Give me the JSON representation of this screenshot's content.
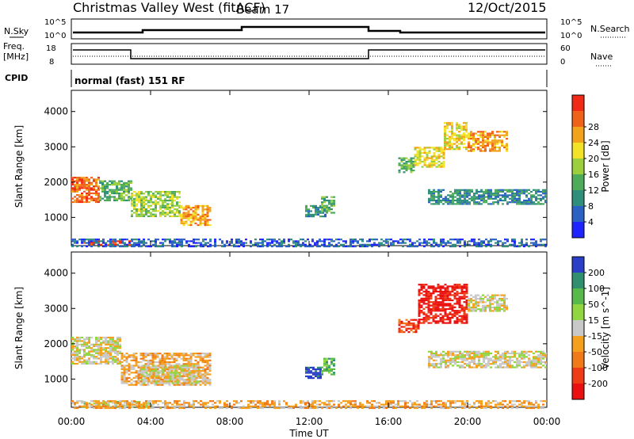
{
  "header": {
    "station": "Christmas Valley West (fitACF)",
    "beam": "Beam 17",
    "date": "12/Oct/2015",
    "mode": "normal (fast) 151 RF"
  },
  "panels": {
    "nsky": {
      "left_label": "N.Sky",
      "left_ticks": [
        "10^5",
        "10^0"
      ],
      "right_label": "N.Search",
      "right_ticks": [
        "10^5",
        "10^0"
      ]
    },
    "freq": {
      "left_label_1": "Freq.",
      "left_label_2": "[MHz]",
      "left_ticks": [
        "18",
        "8"
      ],
      "right_label": "Nave",
      "right_ticks": [
        "60",
        "0"
      ]
    },
    "cpid": {
      "label": "CPID"
    }
  },
  "time_axis": {
    "title": "Time UT",
    "ticks": [
      "00:00",
      "04:00",
      "08:00",
      "12:00",
      "16:00",
      "20:00",
      "00:00"
    ]
  },
  "chart_data": [
    {
      "type": "heatmap",
      "title": "Power",
      "ylabel": "Slant Range [km]",
      "yticks": [
        1000,
        2000,
        3000,
        4000
      ],
      "ylim": [
        200,
        4600
      ],
      "xlim_hours": [
        0,
        24
      ],
      "colorbar": {
        "label": "Power [dB]",
        "ticks": [
          4,
          8,
          12,
          16,
          20,
          24,
          28
        ],
        "colors": [
          "#1f24ff",
          "#2a62c4",
          "#2f8f7a",
          "#4dab5a",
          "#9ccf3c",
          "#f3e227",
          "#f3a21c",
          "#f0621a",
          "#f02a15"
        ]
      },
      "regions": [
        {
          "t0": 0.0,
          "t1": 1.4,
          "r0": 1450,
          "r1": 2150,
          "level": 7
        },
        {
          "t0": 1.4,
          "t1": 3.0,
          "r0": 1500,
          "r1": 2050,
          "level": 3
        },
        {
          "t0": 3.0,
          "t1": 5.5,
          "r0": 1050,
          "r1": 1750,
          "level": 4
        },
        {
          "t0": 5.5,
          "t1": 7.0,
          "r0": 800,
          "r1": 1350,
          "level": 6
        },
        {
          "t0": 11.8,
          "t1": 12.8,
          "r0": 1050,
          "r1": 1350,
          "level": 2
        },
        {
          "t0": 12.6,
          "t1": 13.3,
          "r0": 1150,
          "r1": 1600,
          "level": 3
        },
        {
          "t0": 16.5,
          "t1": 17.3,
          "r0": 2300,
          "r1": 2700,
          "level": 3
        },
        {
          "t0": 17.3,
          "t1": 18.8,
          "r0": 2450,
          "r1": 3000,
          "level": 5
        },
        {
          "t0": 18.8,
          "t1": 20.0,
          "r0": 2950,
          "r1": 3700,
          "level": 5
        },
        {
          "t0": 20.0,
          "t1": 22.0,
          "r0": 2900,
          "r1": 3450,
          "level": 6
        },
        {
          "t0": 18.0,
          "t1": 23.9,
          "r0": 1400,
          "r1": 1800,
          "level": 2
        },
        {
          "t0": 0.6,
          "t1": 3.0,
          "r0": 230,
          "r1": 350,
          "level": 8
        },
        {
          "t0": 0.0,
          "t1": 24.0,
          "r0": 150,
          "r1": 400,
          "level": 1
        }
      ]
    },
    {
      "type": "heatmap",
      "title": "Velocity",
      "ylabel": "Slant Range [km]",
      "yticks": [
        1000,
        2000,
        3000,
        4000
      ],
      "ylim": [
        200,
        4600
      ],
      "xlim_hours": [
        0,
        24
      ],
      "colorbar": {
        "label": "Velocity [m s^-1]",
        "ticks": [
          200,
          100,
          50,
          15,
          -15,
          -50,
          -100,
          -200
        ],
        "colors": [
          "#2a3fc8",
          "#2f8f6e",
          "#57b94a",
          "#90d640",
          "#c8c8c8",
          "#f5a01c",
          "#f07a18",
          "#ef3c14",
          "#ea1010"
        ]
      },
      "regions": [
        {
          "t0": 0.0,
          "t1": 2.5,
          "r0": 1450,
          "r1": 2200,
          "level": 4
        },
        {
          "t0": 2.5,
          "t1": 7.0,
          "r0": 850,
          "r1": 1750,
          "level": 5
        },
        {
          "t0": 3.5,
          "t1": 6.5,
          "r0": 900,
          "r1": 1400,
          "level": 4
        },
        {
          "t0": 11.8,
          "t1": 12.6,
          "r0": 1050,
          "r1": 1350,
          "level": 0
        },
        {
          "t0": 12.6,
          "t1": 13.3,
          "r0": 1150,
          "r1": 1600,
          "level": 2
        },
        {
          "t0": 16.5,
          "t1": 17.5,
          "r0": 2350,
          "r1": 2700,
          "level": 7
        },
        {
          "t0": 17.5,
          "t1": 20.0,
          "r0": 2600,
          "r1": 3700,
          "level": 8
        },
        {
          "t0": 20.0,
          "t1": 22.0,
          "r0": 2950,
          "r1": 3400,
          "level": 4
        },
        {
          "t0": 18.0,
          "t1": 23.9,
          "r0": 1350,
          "r1": 1800,
          "level": 4
        },
        {
          "t0": 0.5,
          "t1": 4.0,
          "r0": 230,
          "r1": 380,
          "level": 3
        },
        {
          "t0": 0.0,
          "t1": 24.0,
          "r0": 150,
          "r1": 400,
          "level": 5
        }
      ]
    }
  ]
}
